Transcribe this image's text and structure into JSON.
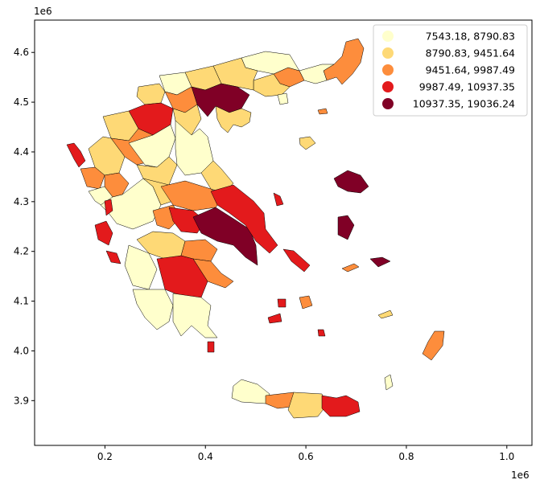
{
  "map": {
    "x_exponent": "1e6",
    "y_exponent": "1e6",
    "x_ticks": [
      "0.2",
      "0.4",
      "0.6",
      "0.8",
      "1.0"
    ],
    "y_ticks": [
      "3.9",
      "4.0",
      "4.1",
      "4.2",
      "4.3",
      "4.4",
      "4.5",
      "4.6"
    ],
    "x_range": [
      0.06,
      1.05
    ],
    "y_range": [
      3.81,
      4.665
    ]
  },
  "legend": {
    "placement": "top-right",
    "items": [
      {
        "label": "7543.18,  8790.83",
        "color": "#ffffcc"
      },
      {
        "label": "8790.83,  9451.64",
        "color": "#fed976"
      },
      {
        "label": "9451.64,  9987.49",
        "color": "#fd8d3c"
      },
      {
        "label": "9987.49, 10937.35",
        "color": "#e31a1c"
      },
      {
        "label": "10937.35, 19036.24",
        "color": "#800026"
      }
    ]
  }
}
